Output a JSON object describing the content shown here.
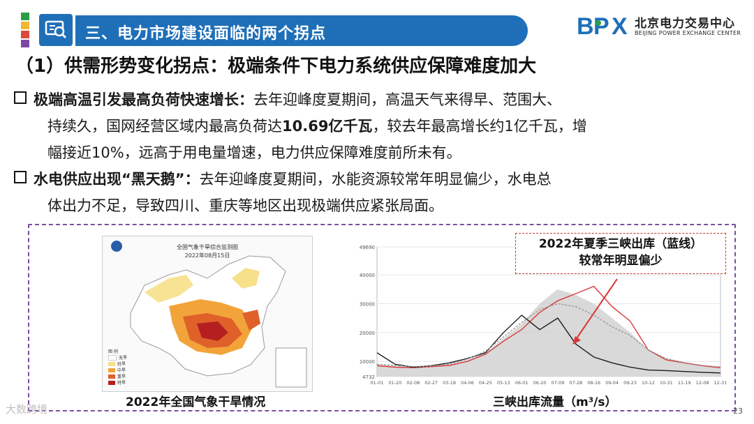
{
  "header": {
    "section_title": "三、电力市场建设面临的两个拐点",
    "color_bars": [
      "#2e9d46",
      "#f2b630",
      "#d84a3a",
      "#7b4aa3",
      "#1f6fb8"
    ],
    "icon": "monitor-search-icon"
  },
  "logo": {
    "mark_b": "B",
    "mark_p": "P",
    "mark_x": "X",
    "name_cn": "北京电力交易中心",
    "name_en": "BEIJING POWER EXCHANGE CENTER",
    "colors": {
      "primary": "#1f6fb8",
      "accent": "#2e9d46"
    }
  },
  "subtitle": "（1）供需形势变化拐点：极端条件下电力系统供应保障难度加大",
  "bullets": [
    {
      "heading": "极端高温引发最高负荷快速增长：",
      "text_1": "去年迎峰度夏期间，高温天气来得早、范围大、",
      "text_2a": "持续久，国网经营区域内最高负荷达",
      "text_2b": "10.69亿千瓦",
      "text_2c": "，较去年最高增长约1亿千瓦，增",
      "text_3": "幅接近10%，远高于用电量增速，电力供应保障难度前所未有。"
    },
    {
      "heading": "水电供应出现“黑天鹅”：",
      "text_1": "去年迎峰度夏期间，水能资源较常年明显偏少，水电总",
      "text_2": "体出力不足，导致四川、重庆等地区出现极端供应紧张局面。"
    }
  ],
  "map_figure": {
    "inner_title": "全国气象干旱综合监测图",
    "inner_date": "2022年08月15日",
    "legend_title": "图 例",
    "legend": [
      {
        "label": "无旱",
        "color": "#ffffff"
      },
      {
        "label": "轻旱",
        "color": "#f7e08a"
      },
      {
        "label": "中旱",
        "color": "#f2a43a"
      },
      {
        "label": "重旱",
        "color": "#e0602a"
      },
      {
        "label": "特旱",
        "color": "#b51f1f"
      }
    ],
    "caption": "2022年全国气象干旱情况"
  },
  "chart_figure": {
    "caption": "三峡出库流量（m³/s）",
    "callout_1": "2022年夏季三峡出库（蓝线）",
    "callout_2": "较常年明显偏少"
  },
  "chart_data": {
    "type": "line",
    "title": "",
    "xlabel": "",
    "ylabel": "",
    "ylim": [
      4732,
      49690
    ],
    "yticks": [
      4732,
      10000,
      20000,
      30000,
      40000,
      49690
    ],
    "categories": [
      "01-01",
      "01-20",
      "02-08",
      "02-27",
      "03-18",
      "04-06",
      "04-25",
      "05-13",
      "06-01",
      "06-20",
      "07-09",
      "07-28",
      "08-16",
      "09-04",
      "09-23",
      "10-12",
      "10-31",
      "11-19",
      "12-08",
      "12-31"
    ],
    "series": [
      {
        "name": "",
        "color": "#cfcfcf",
        "style": "area",
        "values": [
          9000,
          8500,
          8000,
          8500,
          9000,
          10500,
          13000,
          18000,
          23000,
          30000,
          35000,
          33000,
          30000,
          25000,
          20000,
          14000,
          11000,
          9500,
          8500,
          8000
        ]
      },
      {
        "name": "",
        "color": "#d9383a",
        "style": "line",
        "values": [
          8500,
          8000,
          7800,
          8200,
          8600,
          10000,
          12500,
          17000,
          21000,
          27000,
          31000,
          33500,
          36000,
          29000,
          24000,
          14000,
          10500,
          9500,
          8500,
          7800
        ]
      },
      {
        "name": "",
        "color": "#1a1a1a",
        "style": "line",
        "values": [
          13000,
          9000,
          8000,
          8500,
          9500,
          11000,
          13000,
          20000,
          26000,
          21000,
          25000,
          16000,
          11500,
          9500,
          8000,
          7000,
          6800,
          6500,
          6200,
          6000
        ]
      },
      {
        "name": "",
        "color": "#999999",
        "style": "dash",
        "values": [
          9000,
          8600,
          8200,
          8400,
          9000,
          10800,
          13500,
          18500,
          23500,
          28000,
          30000,
          29000,
          26000,
          22000,
          19000,
          14000,
          11000,
          9600,
          8600,
          8100
        ]
      }
    ]
  },
  "page_number": "23",
  "watermark": "大数跨境"
}
